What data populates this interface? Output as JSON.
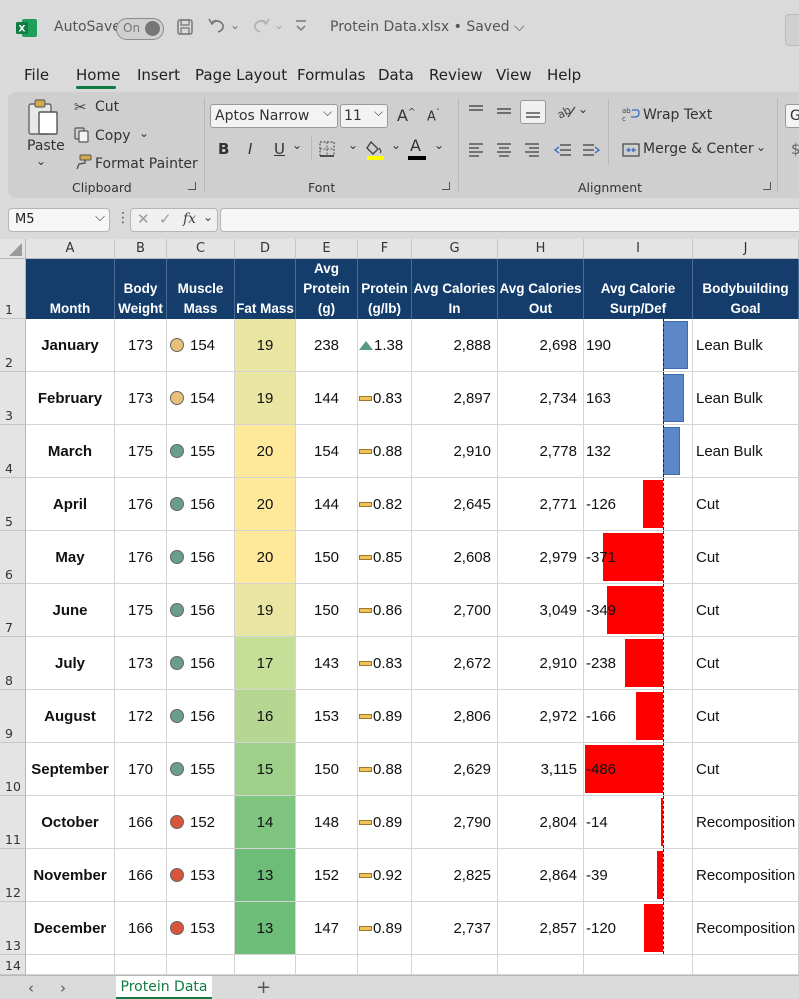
{
  "titlebar": {
    "autosave_label": "AutoSave",
    "autosave_state": "On",
    "filename": "Protein Data.xlsx • Saved",
    "filename_chevron": "⌵"
  },
  "menu": {
    "tabs": [
      "File",
      "Home",
      "Insert",
      "Page Layout",
      "Formulas",
      "Data",
      "Review",
      "View",
      "Help"
    ],
    "active": "Home"
  },
  "ribbon": {
    "clipboard": {
      "paste": "Paste",
      "cut": "Cut",
      "copy": "Copy",
      "format_painter": "Format Painter",
      "label": "Clipboard"
    },
    "font": {
      "font_name": "Aptos Narrow",
      "font_size": "11",
      "grow": "A",
      "shrink": "A",
      "bold": "B",
      "italic": "I",
      "underline": "U",
      "font_color_letter": "A",
      "label": "Font",
      "accent_fill": "#ffff00",
      "accent_font": "#000000"
    },
    "alignment": {
      "wrap_text": "Wrap Text",
      "merge_center": "Merge & Center",
      "label": "Alignment"
    },
    "number_stub": "G",
    "number_stub2": "$"
  },
  "formula_bar": {
    "name_box": "M5",
    "fx": "fx",
    "value": ""
  },
  "columns": [
    "A",
    "B",
    "C",
    "D",
    "E",
    "F",
    "G",
    "H",
    "I",
    "J"
  ],
  "rows": [
    "1",
    "2",
    "3",
    "4",
    "5",
    "6",
    "7",
    "8",
    "9",
    "10",
    "11",
    "12",
    "13",
    "14"
  ],
  "headers": [
    [
      "Month"
    ],
    [
      "Body",
      "Weight"
    ],
    [
      "Muscle",
      "Mass"
    ],
    [
      "Fat Mass"
    ],
    [
      "Avg",
      "Protein",
      "(g)"
    ],
    [
      "Protein",
      "(g/lb)"
    ],
    [
      "Avg Calories",
      "In"
    ],
    [
      "Avg Calories",
      "Out"
    ],
    [
      "Avg Calorie",
      "Surp/Def"
    ],
    [
      "Bodybuilding",
      "Goal"
    ]
  ],
  "data": [
    {
      "month": "January",
      "weight": "173",
      "muscle": "154",
      "muscle_icon": "yellow",
      "fat": "19",
      "protein": "238",
      "ratio": "1.38",
      "ratio_icon": "up",
      "cal_in": "2,888",
      "cal_out": "2,698",
      "surp": "190",
      "surp_value": 190,
      "goal": "Lean Bulk"
    },
    {
      "month": "February",
      "weight": "173",
      "muscle": "154",
      "muscle_icon": "yellow",
      "fat": "19",
      "protein": "144",
      "ratio": "0.83",
      "ratio_icon": "flat",
      "cal_in": "2,897",
      "cal_out": "2,734",
      "surp": "163",
      "surp_value": 163,
      "goal": "Lean Bulk"
    },
    {
      "month": "March",
      "weight": "175",
      "muscle": "155",
      "muscle_icon": "green",
      "fat": "20",
      "protein": "154",
      "ratio": "0.88",
      "ratio_icon": "flat",
      "cal_in": "2,910",
      "cal_out": "2,778",
      "surp": "132",
      "surp_value": 132,
      "goal": "Lean Bulk"
    },
    {
      "month": "April",
      "weight": "176",
      "muscle": "156",
      "muscle_icon": "green",
      "fat": "20",
      "protein": "144",
      "ratio": "0.82",
      "ratio_icon": "flat",
      "cal_in": "2,645",
      "cal_out": "2,771",
      "surp": "-126",
      "surp_value": -126,
      "goal": "Cut"
    },
    {
      "month": "May",
      "weight": "176",
      "muscle": "156",
      "muscle_icon": "green",
      "fat": "20",
      "protein": "150",
      "ratio": "0.85",
      "ratio_icon": "flat",
      "cal_in": "2,608",
      "cal_out": "2,979",
      "surp": "-371",
      "surp_value": -371,
      "goal": "Cut"
    },
    {
      "month": "June",
      "weight": "175",
      "muscle": "156",
      "muscle_icon": "green",
      "fat": "19",
      "protein": "150",
      "ratio": "0.86",
      "ratio_icon": "flat",
      "cal_in": "2,700",
      "cal_out": "3,049",
      "surp": "-349",
      "surp_value": -349,
      "goal": "Cut"
    },
    {
      "month": "July",
      "weight": "173",
      "muscle": "156",
      "muscle_icon": "green",
      "fat": "17",
      "protein": "143",
      "ratio": "0.83",
      "ratio_icon": "flat",
      "cal_in": "2,672",
      "cal_out": "2,910",
      "surp": "-238",
      "surp_value": -238,
      "goal": "Cut"
    },
    {
      "month": "August",
      "weight": "172",
      "muscle": "156",
      "muscle_icon": "green",
      "fat": "16",
      "protein": "153",
      "ratio": "0.89",
      "ratio_icon": "flat",
      "cal_in": "2,806",
      "cal_out": "2,972",
      "surp": "-166",
      "surp_value": -166,
      "goal": "Cut"
    },
    {
      "month": "September",
      "weight": "170",
      "muscle": "155",
      "muscle_icon": "green",
      "fat": "15",
      "protein": "150",
      "ratio": "0.88",
      "ratio_icon": "flat",
      "cal_in": "2,629",
      "cal_out": "3,115",
      "surp": "-486",
      "surp_value": -486,
      "goal": "Cut"
    },
    {
      "month": "October",
      "weight": "166",
      "muscle": "152",
      "muscle_icon": "red",
      "fat": "14",
      "protein": "148",
      "ratio": "0.89",
      "ratio_icon": "flat",
      "cal_in": "2,790",
      "cal_out": "2,804",
      "surp": "-14",
      "surp_value": -14,
      "goal": "Recomposition"
    },
    {
      "month": "November",
      "weight": "166",
      "muscle": "153",
      "muscle_icon": "red",
      "fat": "13",
      "protein": "152",
      "ratio": "0.92",
      "ratio_icon": "flat",
      "cal_in": "2,825",
      "cal_out": "2,864",
      "surp": "-39",
      "surp_value": -39,
      "goal": "Recomposition"
    },
    {
      "month": "December",
      "weight": "166",
      "muscle": "153",
      "muscle_icon": "red",
      "fat": "13",
      "protein": "147",
      "ratio": "0.89",
      "ratio_icon": "flat",
      "cal_in": "2,737",
      "cal_out": "2,857",
      "surp": "-120",
      "surp_value": -120,
      "goal": "Recomposition"
    }
  ],
  "colors": {
    "header_bg": "#143d6b",
    "positive_bar": "#5b87c8",
    "negative_bar": "#ff0000",
    "icon_yellow": "#e8c07a",
    "icon_green": "#6a9e8a",
    "icon_red": "#d9553a",
    "fat_scale": {
      "19": "#e8e6a2",
      "20": "#fee99a",
      "17": "#c6df98",
      "16": "#b5d792",
      "15": "#9ed08a",
      "14": "#7fc580",
      "13": "#6dbd78"
    }
  },
  "sheet_tabs": {
    "active": "Protein Data",
    "add": "+"
  }
}
